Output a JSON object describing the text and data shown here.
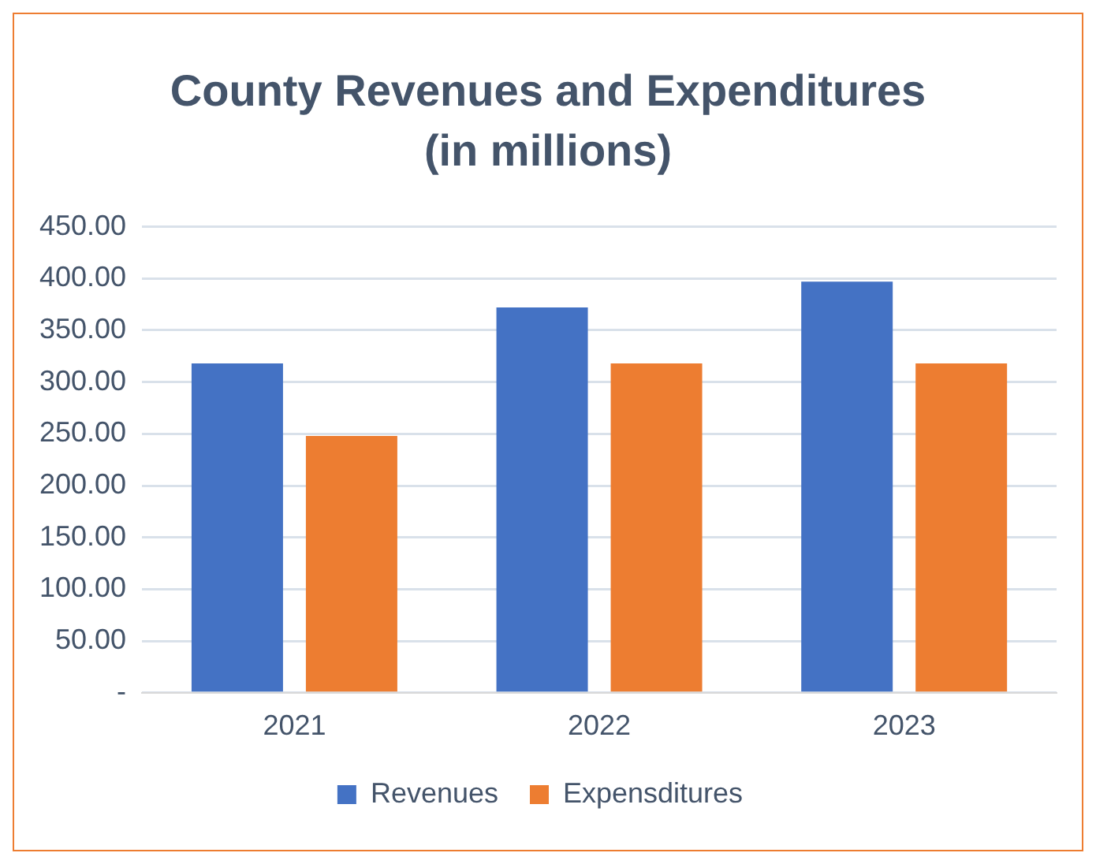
{
  "chart_data": {
    "type": "bar",
    "title": "County Revenues and Expenditures (in millions)",
    "categories": [
      "2021",
      "2022",
      "2023"
    ],
    "series": [
      {
        "name": "Revenues",
        "color": "#4472c4",
        "values": [
          318,
          372,
          397
        ]
      },
      {
        "name": "Expensditures",
        "color": "#ed7d31",
        "values": [
          248,
          318,
          318
        ]
      }
    ],
    "ylim": [
      0,
      450
    ],
    "yticks": [
      {
        "value": 0,
        "label": "-"
      },
      {
        "value": 50,
        "label": "50.00"
      },
      {
        "value": 100,
        "label": "100.00"
      },
      {
        "value": 150,
        "label": "150.00"
      },
      {
        "value": 200,
        "label": "200.00"
      },
      {
        "value": 250,
        "label": "250.00"
      },
      {
        "value": 300,
        "label": "300.00"
      },
      {
        "value": 350,
        "label": "350.00"
      },
      {
        "value": 400,
        "label": "400.00"
      },
      {
        "value": 450,
        "label": "450.00"
      }
    ],
    "grid": "y",
    "legend": "bottom"
  }
}
